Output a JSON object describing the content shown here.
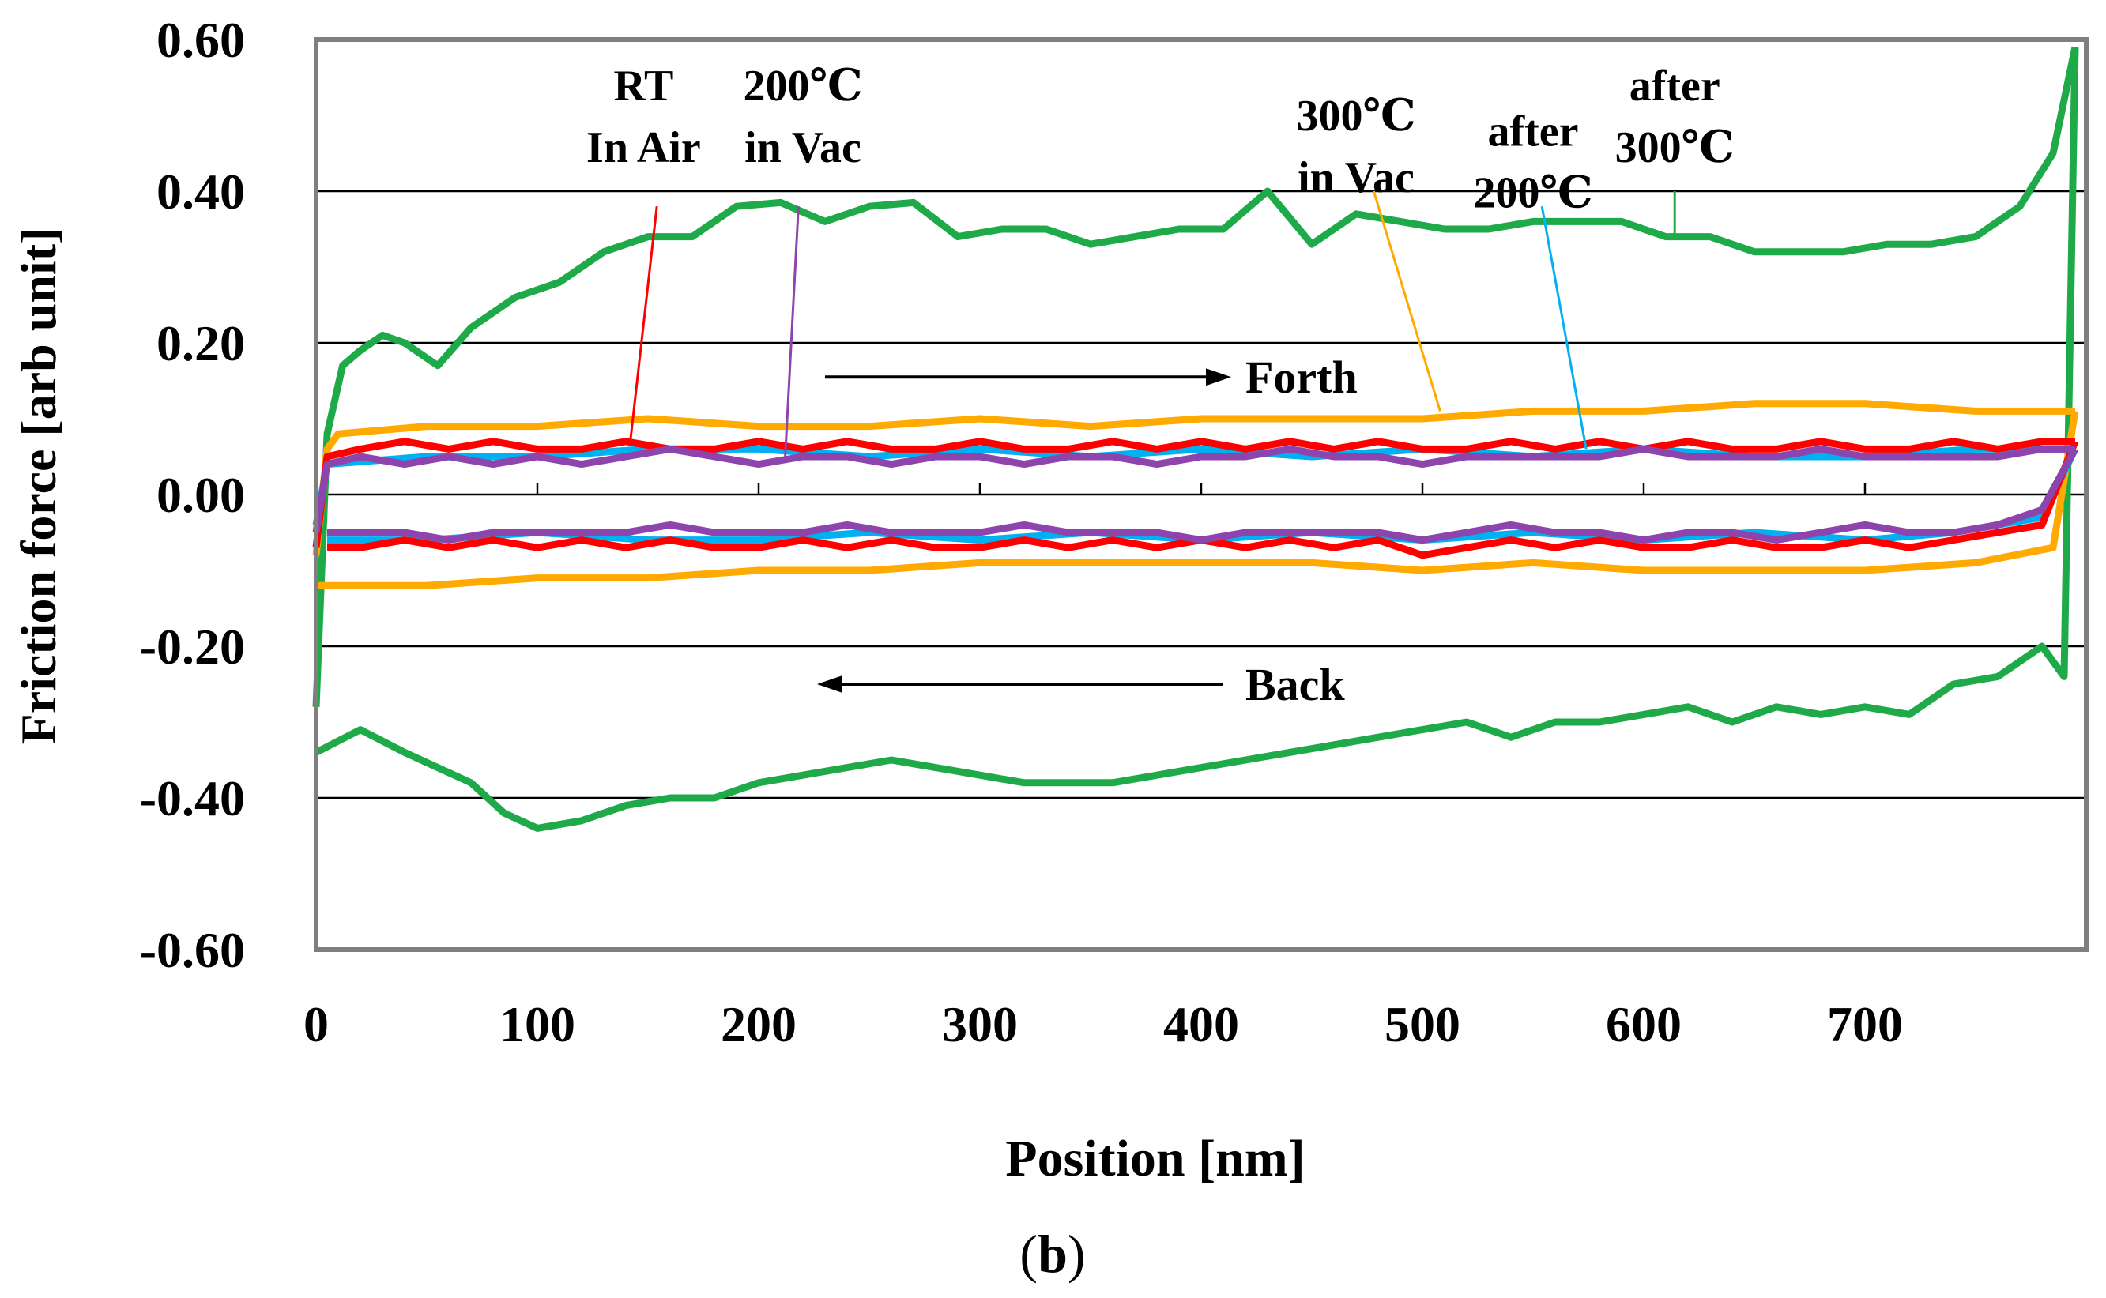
{
  "chart_data": {
    "type": "line",
    "panel_label": "(b)",
    "panel_letter": "b",
    "xlabel": "Position [nm]",
    "ylabel": "Friction force  [arb unit]",
    "xlim": [
      0,
      800
    ],
    "ylim": [
      -0.6,
      0.6
    ],
    "x_ticks": [
      0,
      100,
      200,
      300,
      400,
      500,
      600,
      700
    ],
    "y_ticks": [
      0.6,
      0.4,
      0.2,
      0.0,
      -0.2,
      -0.4,
      -0.6
    ],
    "y_tick_labels": [
      "0.60",
      "0.40",
      "0.20",
      "0.00",
      "-0.20",
      "-0.40",
      "-0.60"
    ],
    "grid": "horizontal",
    "annotations": [
      {
        "text": "Forth",
        "direction": "right",
        "x": 420,
        "y": 0.155
      },
      {
        "text": "Back",
        "direction": "left",
        "x": 420,
        "y": -0.25
      }
    ],
    "colors": {
      "RT In Air": "#ff0000",
      "200℃ in Vac": "#8e44ad",
      "300℃ in Vac": "#ffaa00",
      "after 200℃": "#00b0f0",
      "after 300℃": "#1faa4a"
    },
    "series": [
      {
        "name": "after 300℃",
        "label_lines": [
          "after",
          "300℃"
        ],
        "label_x": 614,
        "label_y": 0.52,
        "leader": [
          [
            614,
            0.4
          ],
          [
            614,
            0.34
          ]
        ],
        "color": "#1faa4a",
        "forth_x": [
          0,
          5,
          12,
          20,
          30,
          40,
          55,
          70,
          90,
          110,
          130,
          150,
          170,
          190,
          210,
          230,
          250,
          270,
          290,
          310,
          330,
          350,
          370,
          390,
          410,
          430,
          450,
          470,
          490,
          510,
          530,
          550,
          570,
          590,
          610,
          630,
          650,
          670,
          690,
          710,
          730,
          750,
          770,
          785,
          795
        ],
        "forth_y": [
          -0.28,
          0.08,
          0.17,
          0.19,
          0.21,
          0.2,
          0.17,
          0.22,
          0.26,
          0.28,
          0.32,
          0.34,
          0.34,
          0.38,
          0.385,
          0.36,
          0.38,
          0.385,
          0.34,
          0.35,
          0.35,
          0.33,
          0.34,
          0.35,
          0.35,
          0.4,
          0.33,
          0.37,
          0.36,
          0.35,
          0.35,
          0.36,
          0.36,
          0.36,
          0.34,
          0.34,
          0.32,
          0.32,
          0.32,
          0.33,
          0.33,
          0.34,
          0.38,
          0.45,
          0.59
        ],
        "back_x": [
          795,
          790,
          780,
          760,
          740,
          720,
          700,
          680,
          660,
          640,
          620,
          600,
          580,
          560,
          540,
          520,
          500,
          480,
          460,
          440,
          420,
          400,
          380,
          360,
          340,
          320,
          300,
          280,
          260,
          240,
          220,
          200,
          180,
          160,
          140,
          120,
          100,
          85,
          70,
          55,
          40,
          20,
          0
        ],
        "back_y": [
          0.59,
          -0.24,
          -0.2,
          -0.24,
          -0.25,
          -0.29,
          -0.28,
          -0.29,
          -0.28,
          -0.3,
          -0.28,
          -0.29,
          -0.3,
          -0.3,
          -0.32,
          -0.3,
          -0.31,
          -0.32,
          -0.33,
          -0.34,
          -0.35,
          -0.36,
          -0.37,
          -0.38,
          -0.38,
          -0.38,
          -0.37,
          -0.36,
          -0.35,
          -0.36,
          -0.37,
          -0.38,
          -0.4,
          -0.4,
          -0.41,
          -0.43,
          -0.44,
          -0.42,
          -0.38,
          -0.36,
          -0.34,
          -0.31,
          -0.34
        ]
      },
      {
        "name": "300℃ in Vac",
        "label_lines": [
          "300℃",
          "in Vac"
        ],
        "label_x": 470,
        "label_y": 0.48,
        "leader": [
          [
            478,
            0.4
          ],
          [
            508,
            0.11
          ]
        ],
        "color": "#ffaa00",
        "forth_x": [
          0,
          5,
          10,
          50,
          100,
          150,
          200,
          250,
          300,
          350,
          400,
          450,
          500,
          550,
          600,
          650,
          700,
          750,
          795
        ],
        "forth_y": [
          -0.08,
          0.06,
          0.08,
          0.09,
          0.09,
          0.1,
          0.09,
          0.09,
          0.1,
          0.09,
          0.1,
          0.1,
          0.1,
          0.11,
          0.11,
          0.12,
          0.12,
          0.11,
          0.11
        ],
        "back_x": [
          795,
          785,
          750,
          700,
          650,
          600,
          550,
          500,
          450,
          400,
          350,
          300,
          250,
          200,
          150,
          100,
          50,
          0
        ],
        "back_y": [
          0.11,
          -0.07,
          -0.09,
          -0.1,
          -0.1,
          -0.1,
          -0.09,
          -0.1,
          -0.09,
          -0.09,
          -0.09,
          -0.09,
          -0.1,
          -0.1,
          -0.11,
          -0.11,
          -0.12,
          -0.12
        ]
      },
      {
        "name": "after 200℃",
        "label_lines": [
          "after",
          "200℃"
        ],
        "label_x": 550,
        "label_y": 0.46,
        "leader": [
          [
            554,
            0.38
          ],
          [
            574,
            0.06
          ]
        ],
        "color": "#00b0f0",
        "forth_x": [
          0,
          5,
          50,
          100,
          150,
          200,
          250,
          300,
          350,
          400,
          450,
          500,
          550,
          600,
          650,
          700,
          750,
          795
        ],
        "forth_y": [
          -0.04,
          0.04,
          0.05,
          0.05,
          0.06,
          0.06,
          0.05,
          0.06,
          0.05,
          0.06,
          0.05,
          0.06,
          0.05,
          0.06,
          0.05,
          0.05,
          0.06,
          0.06
        ],
        "back_x": [
          795,
          780,
          740,
          700,
          650,
          600,
          550,
          500,
          450,
          400,
          350,
          300,
          250,
          200,
          150,
          100,
          50,
          5
        ],
        "back_y": [
          0.06,
          -0.03,
          -0.05,
          -0.06,
          -0.05,
          -0.06,
          -0.05,
          -0.06,
          -0.05,
          -0.06,
          -0.05,
          -0.06,
          -0.05,
          -0.06,
          -0.06,
          -0.05,
          -0.06,
          -0.06
        ]
      },
      {
        "name": "RT In Air",
        "label_lines": [
          "RT",
          "In Air"
        ],
        "label_x": 148,
        "label_y": 0.52,
        "leader": [
          [
            154,
            0.38
          ],
          [
            142,
            0.07
          ]
        ],
        "color": "#ff0000",
        "forth_x": [
          0,
          5,
          20,
          40,
          60,
          80,
          100,
          120,
          140,
          160,
          180,
          200,
          220,
          240,
          260,
          280,
          300,
          320,
          340,
          360,
          380,
          400,
          420,
          440,
          460,
          480,
          500,
          520,
          540,
          560,
          580,
          600,
          620,
          640,
          660,
          680,
          700,
          720,
          740,
          760,
          780,
          795
        ],
        "forth_y": [
          -0.07,
          0.05,
          0.06,
          0.07,
          0.06,
          0.07,
          0.06,
          0.06,
          0.07,
          0.06,
          0.06,
          0.07,
          0.06,
          0.07,
          0.06,
          0.06,
          0.07,
          0.06,
          0.06,
          0.07,
          0.06,
          0.07,
          0.06,
          0.07,
          0.06,
          0.07,
          0.06,
          0.06,
          0.07,
          0.06,
          0.07,
          0.06,
          0.07,
          0.06,
          0.06,
          0.07,
          0.06,
          0.06,
          0.07,
          0.06,
          0.07,
          0.07
        ],
        "back_x": [
          795,
          780,
          760,
          740,
          720,
          700,
          680,
          660,
          640,
          620,
          600,
          580,
          560,
          540,
          520,
          500,
          480,
          460,
          440,
          420,
          400,
          380,
          360,
          340,
          320,
          300,
          280,
          260,
          240,
          220,
          200,
          180,
          160,
          140,
          120,
          100,
          80,
          60,
          40,
          20,
          5
        ],
        "back_y": [
          0.07,
          -0.04,
          -0.05,
          -0.06,
          -0.07,
          -0.06,
          -0.07,
          -0.07,
          -0.06,
          -0.07,
          -0.07,
          -0.06,
          -0.07,
          -0.06,
          -0.07,
          -0.08,
          -0.06,
          -0.07,
          -0.06,
          -0.07,
          -0.06,
          -0.07,
          -0.06,
          -0.07,
          -0.06,
          -0.07,
          -0.07,
          -0.06,
          -0.07,
          -0.06,
          -0.07,
          -0.07,
          -0.06,
          -0.07,
          -0.06,
          -0.07,
          -0.06,
          -0.07,
          -0.06,
          -0.07,
          -0.07
        ]
      },
      {
        "name": "200℃ in Vac",
        "label_lines": [
          "200℃",
          "in Vac"
        ],
        "label_x": 220,
        "label_y": 0.52,
        "leader": [
          [
            218,
            0.38
          ],
          [
            212,
            0.05
          ]
        ],
        "color": "#8e44ad",
        "forth_x": [
          0,
          5,
          20,
          40,
          60,
          80,
          100,
          120,
          140,
          160,
          180,
          200,
          220,
          240,
          260,
          280,
          300,
          320,
          340,
          360,
          380,
          400,
          420,
          440,
          460,
          480,
          500,
          520,
          540,
          560,
          580,
          600,
          620,
          640,
          660,
          680,
          700,
          720,
          740,
          760,
          780,
          795
        ],
        "forth_y": [
          -0.05,
          0.04,
          0.05,
          0.04,
          0.05,
          0.04,
          0.05,
          0.04,
          0.05,
          0.06,
          0.05,
          0.04,
          0.05,
          0.05,
          0.04,
          0.05,
          0.05,
          0.04,
          0.05,
          0.05,
          0.04,
          0.05,
          0.05,
          0.06,
          0.05,
          0.05,
          0.04,
          0.05,
          0.05,
          0.05,
          0.05,
          0.06,
          0.05,
          0.05,
          0.05,
          0.06,
          0.05,
          0.05,
          0.05,
          0.05,
          0.06,
          0.06
        ],
        "back_x": [
          795,
          780,
          760,
          740,
          720,
          700,
          680,
          660,
          640,
          620,
          600,
          580,
          560,
          540,
          520,
          500,
          480,
          460,
          440,
          420,
          400,
          380,
          360,
          340,
          320,
          300,
          280,
          260,
          240,
          220,
          200,
          180,
          160,
          140,
          120,
          100,
          80,
          60,
          40,
          20,
          5
        ],
        "back_y": [
          0.06,
          -0.02,
          -0.04,
          -0.05,
          -0.05,
          -0.04,
          -0.05,
          -0.06,
          -0.05,
          -0.05,
          -0.06,
          -0.05,
          -0.05,
          -0.04,
          -0.05,
          -0.06,
          -0.05,
          -0.05,
          -0.05,
          -0.05,
          -0.06,
          -0.05,
          -0.05,
          -0.05,
          -0.04,
          -0.05,
          -0.05,
          -0.05,
          -0.04,
          -0.05,
          -0.05,
          -0.05,
          -0.04,
          -0.05,
          -0.05,
          -0.05,
          -0.05,
          -0.06,
          -0.05,
          -0.05,
          -0.05
        ]
      }
    ]
  }
}
